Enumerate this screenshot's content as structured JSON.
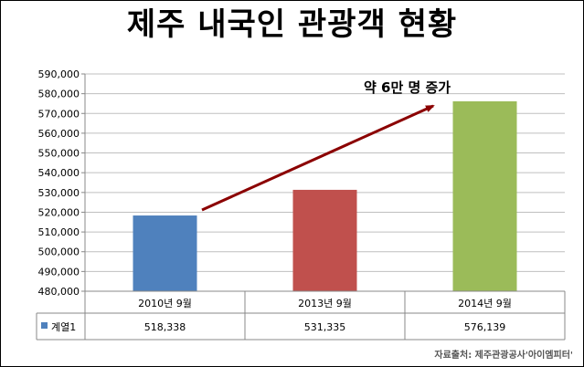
{
  "title": "제주 내국인 관광객 현황",
  "source": "자료출처: 제주관광공사'아이엠피터'",
  "chart_data": {
    "type": "bar",
    "title": "제주 내국인 관광객 현황",
    "categories": [
      "2010년 9월",
      "2013년 9월",
      "2014년 9월"
    ],
    "series": [
      {
        "name": "계열1",
        "values": [
          518338,
          531335,
          576139
        ]
      }
    ],
    "value_labels": [
      "518,338",
      "531,335",
      "576,139"
    ],
    "bar_colors": [
      "#4f81bd",
      "#c0504d",
      "#9bbb59"
    ],
    "arrow_color": "#8b0000",
    "ylim": [
      480000,
      590000
    ],
    "yticks": [
      480000,
      490000,
      500000,
      510000,
      520000,
      530000,
      540000,
      550000,
      560000,
      570000,
      580000,
      590000
    ],
    "ytick_labels": [
      "480,000",
      "490,000",
      "500,000",
      "510,000",
      "520,000",
      "530,000",
      "540,000",
      "550,000",
      "560,000",
      "570,000",
      "580,000",
      "590,000"
    ],
    "annotation": "약 6만 명 증가",
    "grid": true,
    "legend": "data-table"
  }
}
